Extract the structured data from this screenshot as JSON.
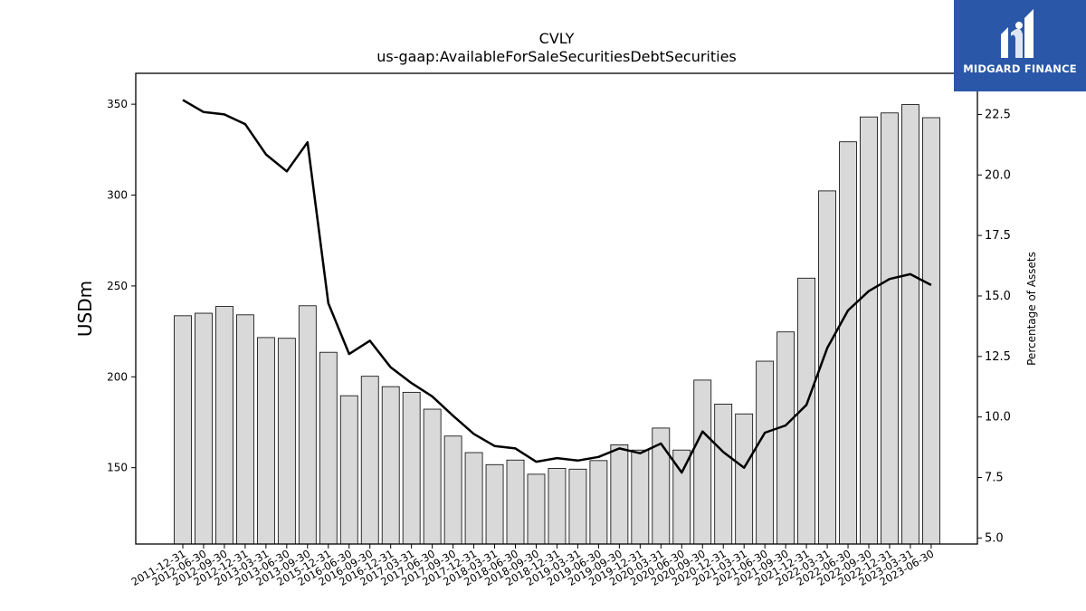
{
  "chart_data": {
    "type": "bar",
    "title": "CVLY",
    "subtitle": "us-gaap:AvailableForSaleSecuritiesDebtSecurities",
    "ylabel": "USDm",
    "y2label": "Percentage of Assets",
    "ylim": [
      108,
      367
    ],
    "y2lim": [
      4.75,
      24.2
    ],
    "yticks": [
      150,
      200,
      250,
      300,
      350
    ],
    "y2ticks": [
      "5.0",
      "7.5",
      "10.0",
      "12.5",
      "15.0",
      "17.5",
      "20.0",
      "22.5"
    ],
    "categories": [
      "2011-12-31",
      "2012-06-30",
      "2012-09-30",
      "2012-12-31",
      "2013-03-31",
      "2013-06-30",
      "2013-09-30",
      "2015-12-31",
      "2016-06-30",
      "2016-09-30",
      "2016-12-31",
      "2017-03-31",
      "2017-06-30",
      "2017-09-30",
      "2017-12-31",
      "2018-03-31",
      "2018-06-30",
      "2018-09-30",
      "2018-12-31",
      "2019-03-31",
      "2019-06-30",
      "2019-09-30",
      "2019-12-31",
      "2020-03-31",
      "2020-06-30",
      "2020-09-30",
      "2020-12-31",
      "2021-03-31",
      "2021-06-30",
      "2021-09-30",
      "2021-12-31",
      "2022-03-31",
      "2022-06-30",
      "2022-09-30",
      "2022-12-31",
      "2023-03-31",
      "2023-06-30"
    ],
    "series": [
      {
        "type": "bar",
        "axis": "left",
        "color": "#d9d9d9",
        "values": [
          233.6,
          235.0,
          238.7,
          234.1,
          221.6,
          221.2,
          239.1,
          213.5,
          189.6,
          200.3,
          194.6,
          191.5,
          182.2,
          167.4,
          158.3,
          151.7,
          154.2,
          146.4,
          149.6,
          149.2,
          153.9,
          162.6,
          159.7,
          171.8,
          159.7,
          198.2,
          185.0,
          179.6,
          208.6,
          224.7,
          254.3,
          302.3,
          329.3,
          343.0,
          345.2,
          349.8,
          342.6
        ]
      },
      {
        "type": "line",
        "axis": "right",
        "color": "#000000",
        "values": [
          23.1,
          22.6,
          22.5,
          22.1,
          20.85,
          20.15,
          21.35,
          14.7,
          12.6,
          13.15,
          12.05,
          11.4,
          10.85,
          10.05,
          9.3,
          8.8,
          8.7,
          8.15,
          8.3,
          8.2,
          8.35,
          8.7,
          8.5,
          8.9,
          7.7,
          9.4,
          8.55,
          7.9,
          9.35,
          9.65,
          10.5,
          12.85,
          14.4,
          15.2,
          15.7,
          15.9,
          15.45
        ]
      }
    ]
  },
  "logo": {
    "text": "MIDGARD FINANCE"
  }
}
